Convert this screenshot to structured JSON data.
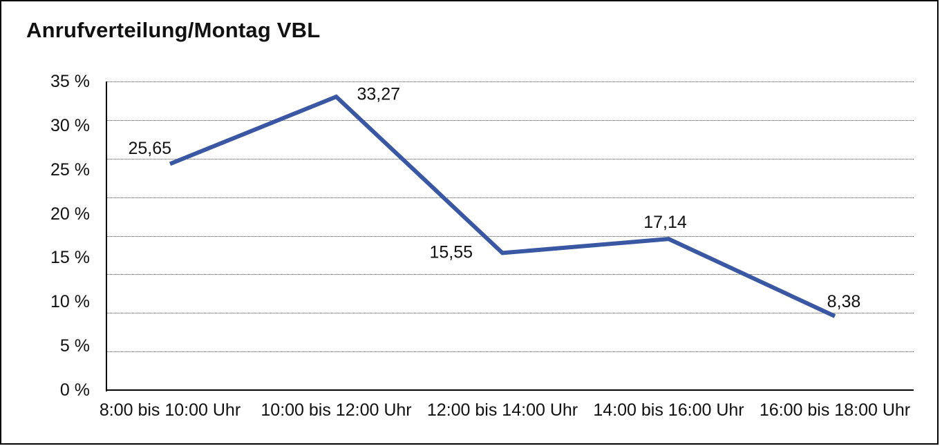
{
  "page": {
    "title": "Anrufverteilung/Montag VBL"
  },
  "chart_data": {
    "type": "line",
    "title": "Anrufverteilung/Montag VBL",
    "categories": [
      "8:00 bis 10:00 Uhr",
      "10:00 bis 12:00 Uhr",
      "12:00 bis 14:00 Uhr",
      "14:00 bis 16:00 Uhr",
      "16:00 bis 18:00 Uhr"
    ],
    "values": [
      25.65,
      33.27,
      15.55,
      17.14,
      8.38
    ],
    "value_labels": [
      "25,65",
      "33,27",
      "15,55",
      "17,14",
      "8,38"
    ],
    "value_label_positions": [
      "above-left",
      "right",
      "left",
      "above",
      "above-right"
    ],
    "xlabel": "",
    "ylabel": "",
    "ylim": [
      0,
      35
    ],
    "ytick_step": 5,
    "ytick_labels_top_to_bottom": [
      "35 %",
      "30 %",
      "25 %",
      "20 %",
      "15 %",
      "10 %",
      "5 %",
      "0 %"
    ],
    "grid": "horizontal dotted lines",
    "legend_position": "none",
    "marker": "none"
  },
  "colors": {
    "line": "#3A57A3",
    "text": "#111111",
    "grid": "#4d4d4d",
    "axis": "#000000",
    "frame_border": "#000000",
    "background": "#ffffff"
  }
}
